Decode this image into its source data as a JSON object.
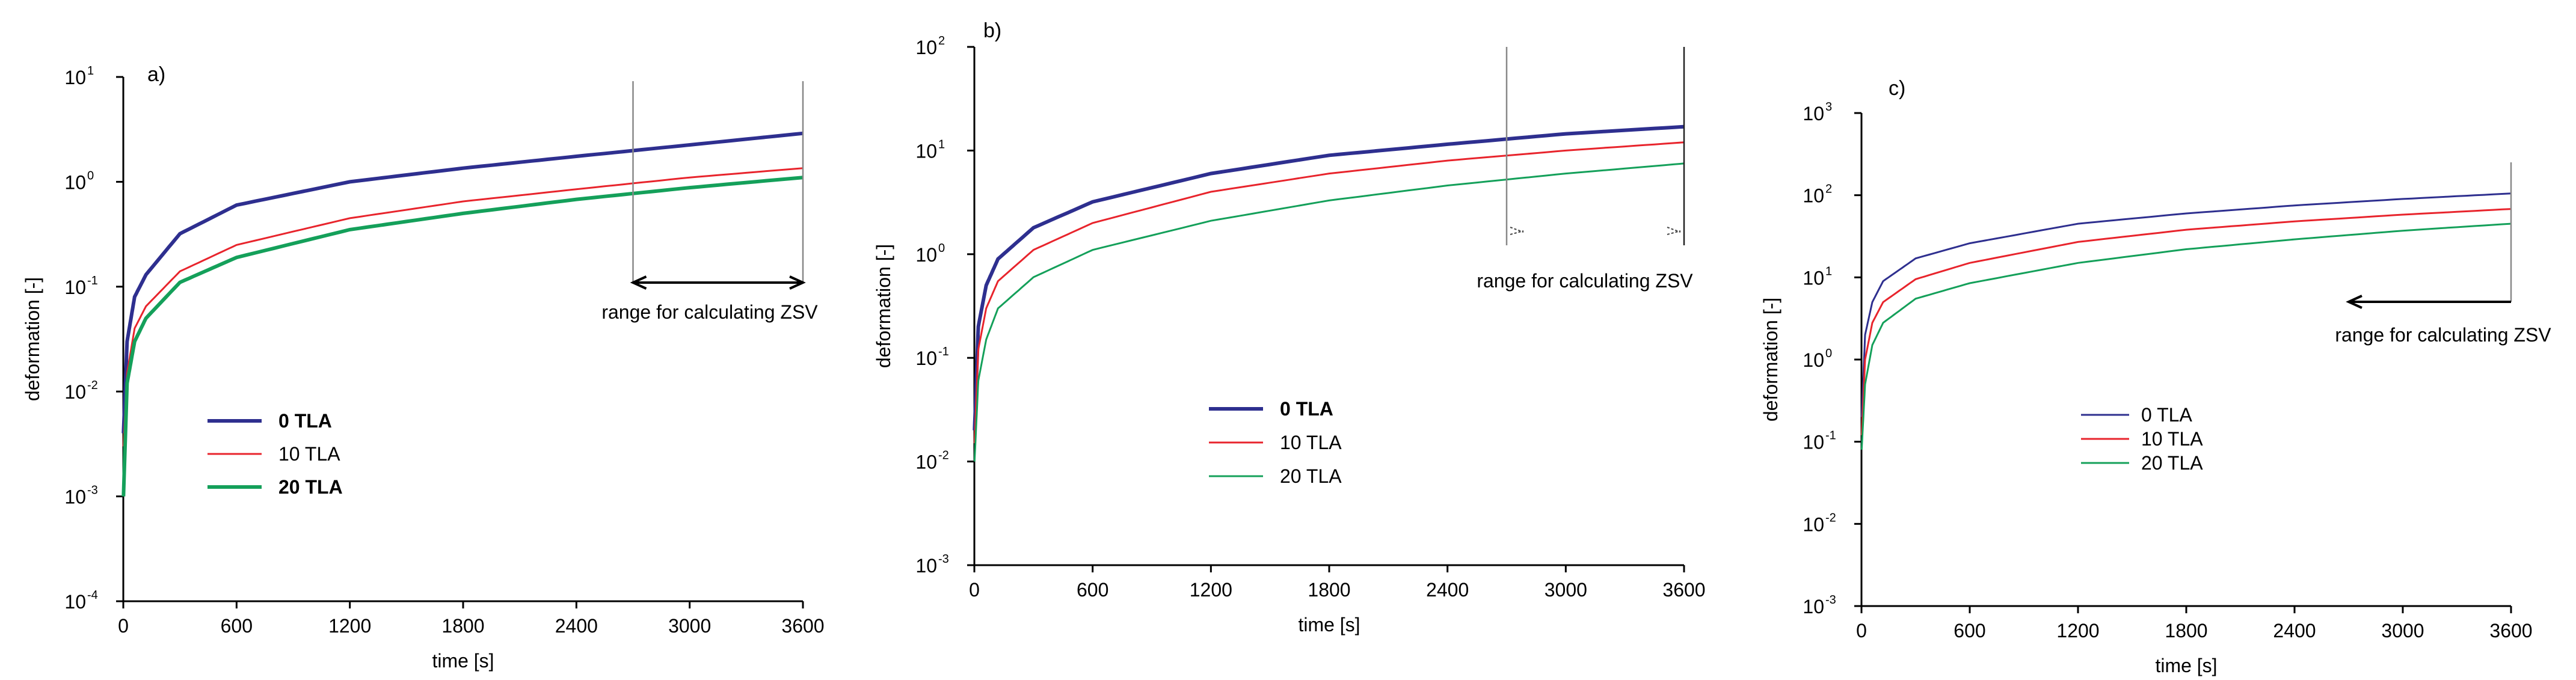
{
  "chart_data": [
    {
      "type": "line",
      "panel": "a)",
      "xlabel": "time [s]",
      "ylabel": "deformation [-]",
      "xlim": [
        0,
        3600
      ],
      "ylim_log10": [
        -4,
        1
      ],
      "x_ticks": [
        "0",
        "600",
        "1200",
        "1800",
        "2400",
        "3000",
        "3600"
      ],
      "y_tick_exponents": [
        "-4",
        "-3",
        "-2",
        "-1",
        "0",
        "1"
      ],
      "annotation": "range for calculating ZSV",
      "annotation_range": [
        2700,
        3600
      ],
      "legend": "left-middle",
      "series": [
        {
          "name": "0 TLA",
          "color": "#2e2f8f",
          "width": 6,
          "x": [
            1,
            20,
            60,
            120,
            300,
            600,
            1200,
            1800,
            2400,
            3000,
            3600
          ],
          "y": [
            0.004,
            0.03,
            0.08,
            0.13,
            0.32,
            0.6,
            1.0,
            1.35,
            1.75,
            2.25,
            2.9
          ]
        },
        {
          "name": "10 TLA",
          "color": "#e8242c",
          "width": 3,
          "x": [
            1,
            20,
            60,
            120,
            300,
            600,
            1200,
            1800,
            2400,
            3000,
            3600
          ],
          "y": [
            0.003,
            0.015,
            0.04,
            0.065,
            0.14,
            0.25,
            0.45,
            0.65,
            0.85,
            1.1,
            1.35
          ]
        },
        {
          "name": "20 TLA",
          "color": "#14a05a",
          "width": 6,
          "x": [
            1,
            20,
            60,
            120,
            300,
            600,
            1200,
            1800,
            2400,
            3000,
            3600
          ],
          "y": [
            0.001,
            0.012,
            0.03,
            0.05,
            0.11,
            0.19,
            0.35,
            0.5,
            0.68,
            0.88,
            1.1
          ]
        }
      ]
    },
    {
      "type": "line",
      "panel": "b)",
      "xlabel": "time [s]",
      "ylabel": "deformation [-]",
      "xlim": [
        0,
        3600
      ],
      "ylim_log10": [
        -3,
        2
      ],
      "x_ticks": [
        "0",
        "600",
        "1200",
        "1800",
        "2400",
        "3000",
        "3600"
      ],
      "y_tick_exponents": [
        "-3",
        "-2",
        "-1",
        "0",
        "1",
        "2"
      ],
      "annotation": "range for calculating ZSV",
      "annotation_range": [
        2700,
        3600
      ],
      "legend": "center",
      "series": [
        {
          "name": "0 TLA",
          "color": "#2e2f8f",
          "width": 6,
          "x": [
            1,
            20,
            60,
            120,
            300,
            600,
            1200,
            1800,
            2400,
            3000,
            3600
          ],
          "y": [
            0.02,
            0.2,
            0.5,
            0.9,
            1.8,
            3.2,
            6.0,
            9.0,
            11.5,
            14.5,
            17.0
          ]
        },
        {
          "name": "10 TLA",
          "color": "#e8242c",
          "width": 3,
          "x": [
            1,
            20,
            60,
            120,
            300,
            600,
            1200,
            1800,
            2400,
            3000,
            3600
          ],
          "y": [
            0.015,
            0.12,
            0.3,
            0.55,
            1.1,
            2.0,
            4.0,
            6.0,
            8.0,
            10.0,
            12.0
          ]
        },
        {
          "name": "20 TLA",
          "color": "#14a05a",
          "width": 3,
          "x": [
            1,
            20,
            60,
            120,
            300,
            600,
            1200,
            1800,
            2400,
            3000,
            3600
          ],
          "y": [
            0.01,
            0.06,
            0.15,
            0.3,
            0.6,
            1.1,
            2.1,
            3.3,
            4.6,
            6.0,
            7.5
          ]
        }
      ]
    },
    {
      "type": "line",
      "panel": "c)",
      "xlabel": "time [s]",
      "ylabel": "deformation [-]",
      "xlim": [
        0,
        3600
      ],
      "ylim_log10": [
        -3,
        3
      ],
      "x_ticks": [
        "0",
        "600",
        "1200",
        "1800",
        "2400",
        "3000",
        "3600"
      ],
      "y_tick_exponents": [
        "-3",
        "-2",
        "-1",
        "0",
        "1",
        "2",
        "3"
      ],
      "annotation": "range for calculating ZSV",
      "annotation_range": [
        2700,
        3600
      ],
      "legend": "center",
      "series": [
        {
          "name": "0 TLA",
          "color": "#2e2f8f",
          "width": 3,
          "x": [
            1,
            20,
            60,
            120,
            300,
            600,
            1200,
            1800,
            2400,
            3000,
            3600
          ],
          "y": [
            0.2,
            2.0,
            5.0,
            9.0,
            17.0,
            26.0,
            45.0,
            60.0,
            75.0,
            90.0,
            105.0
          ]
        },
        {
          "name": "10 TLA",
          "color": "#e8242c",
          "width": 3,
          "x": [
            1,
            20,
            60,
            120,
            300,
            600,
            1200,
            1800,
            2400,
            3000,
            3600
          ],
          "y": [
            0.12,
            1.0,
            2.8,
            5.0,
            9.5,
            15.0,
            27.0,
            38.0,
            48.0,
            58.0,
            68.0
          ]
        },
        {
          "name": "20 TLA",
          "color": "#14a05a",
          "width": 3,
          "x": [
            1,
            20,
            60,
            120,
            300,
            600,
            1200,
            1800,
            2400,
            3000,
            3600
          ],
          "y": [
            0.08,
            0.5,
            1.5,
            2.8,
            5.5,
            8.5,
            15.0,
            22.0,
            29.0,
            37.0,
            45.0
          ]
        }
      ]
    }
  ]
}
